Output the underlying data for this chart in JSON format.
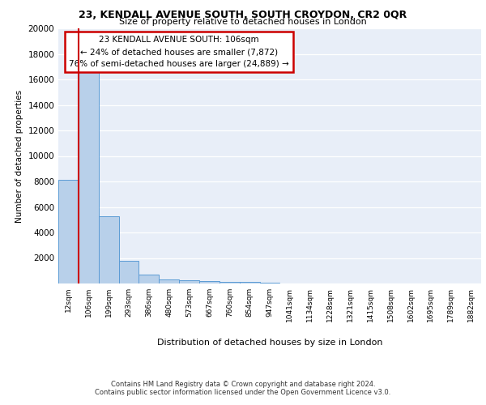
{
  "title1": "23, KENDALL AVENUE SOUTH, SOUTH CROYDON, CR2 0QR",
  "title2": "Size of property relative to detached houses in London",
  "xlabel": "Distribution of detached houses by size in London",
  "ylabel": "Number of detached properties",
  "footnote1": "Contains HM Land Registry data © Crown copyright and database right 2024.",
  "footnote2": "Contains public sector information licensed under the Open Government Licence v3.0.",
  "annotation_title": "23 KENDALL AVENUE SOUTH: 106sqm",
  "annotation_line1": "← 24% of detached houses are smaller (7,872)",
  "annotation_line2": "76% of semi-detached houses are larger (24,889) →",
  "bar_heights": [
    8100,
    16700,
    5300,
    1750,
    700,
    300,
    250,
    200,
    150,
    130,
    50,
    30,
    20,
    15,
    10,
    8,
    6,
    5,
    4,
    3,
    2
  ],
  "bar_color": "#b8d0ea",
  "bar_edge_color": "#5b9bd5",
  "red_line_index": 1,
  "red_line_color": "#cc0000",
  "x_labels": [
    "12sqm",
    "106sqm",
    "199sqm",
    "293sqm",
    "386sqm",
    "480sqm",
    "573sqm",
    "667sqm",
    "760sqm",
    "854sqm",
    "947sqm",
    "1041sqm",
    "1134sqm",
    "1228sqm",
    "1321sqm",
    "1415sqm",
    "1508sqm",
    "1602sqm",
    "1695sqm",
    "1789sqm",
    "1882sqm"
  ],
  "ylim": [
    0,
    20000
  ],
  "yticks": [
    0,
    2000,
    4000,
    6000,
    8000,
    10000,
    12000,
    14000,
    16000,
    18000,
    20000
  ],
  "bg_color": "#e8eef8",
  "grid_color": "#ffffff",
  "annotation_box_edge": "#cc0000",
  "fig_width": 6.0,
  "fig_height": 5.0
}
